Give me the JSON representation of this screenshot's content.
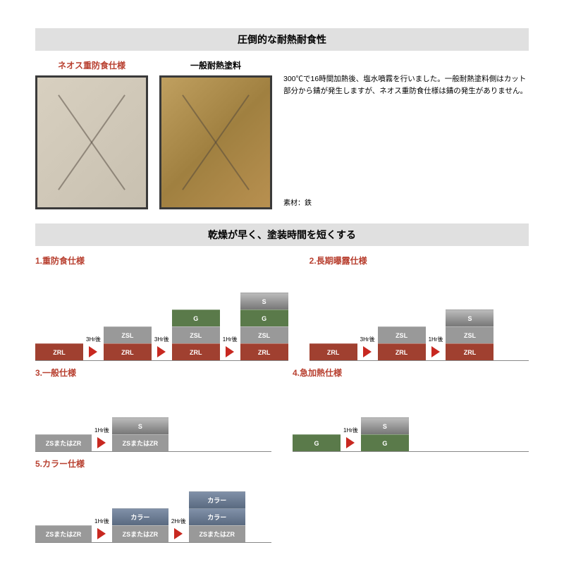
{
  "section1": {
    "title": "圧倒的な耐熱耐食性",
    "samples": [
      {
        "label": "ネオス重防食仕様",
        "labelColor": "red",
        "style": "clean"
      },
      {
        "label": "一般耐熱塗料",
        "labelColor": "black",
        "style": "rusty"
      }
    ],
    "description": "300℃で16時間加熱後、塩水噴霧を行いました。一般耐熱塗料側はカット部分から錆が発生しますが、ネオス重防食仕様は錆の発生がありません。",
    "material": "素材：鉄"
  },
  "section2": {
    "title": "乾燥が早く、塗装時間を短くする"
  },
  "specs": {
    "spec1": {
      "title": "1.重防食仕様",
      "steps": [
        {
          "layers": [
            "ZRL"
          ]
        },
        {
          "time": "3Hr後",
          "layers": [
            "ZRL",
            "ZSL"
          ]
        },
        {
          "time": "3Hr後",
          "layers": [
            "ZRL",
            "ZSL",
            "G"
          ]
        },
        {
          "time": "1Hr後",
          "layers": [
            "ZRL",
            "ZSL",
            "G",
            "S"
          ]
        }
      ]
    },
    "spec2": {
      "title": "2.長期曝露仕様",
      "steps": [
        {
          "layers": [
            "ZRL"
          ]
        },
        {
          "time": "3Hr後",
          "layers": [
            "ZRL",
            "ZSL"
          ]
        },
        {
          "time": "1Hr後",
          "layers": [
            "ZRL",
            "ZSL",
            "S"
          ]
        }
      ]
    },
    "spec3": {
      "title": "3.一般仕様",
      "steps": [
        {
          "layers": [
            "ZSまたはZR"
          ]
        },
        {
          "time": "1Hr後",
          "layers": [
            "ZSまたはZR",
            "S"
          ]
        }
      ]
    },
    "spec4": {
      "title": "4.急加熱仕様",
      "steps": [
        {
          "layers": [
            "G"
          ]
        },
        {
          "time": "1Hr後",
          "layers": [
            "G",
            "S"
          ]
        }
      ]
    },
    "spec5": {
      "title": "5.カラー仕様",
      "steps": [
        {
          "layers": [
            "ZSまたはZR"
          ]
        },
        {
          "time": "1Hr後",
          "layers": [
            "ZSまたはZR",
            "カラー"
          ]
        },
        {
          "time": "2Hr後",
          "layers": [
            "ZSまたはZR",
            "カラー",
            "カラー"
          ]
        }
      ]
    }
  },
  "layerStyles": {
    "ZRL": "lyr-zrl",
    "ZSL": "lyr-zsl",
    "G": "lyr-g",
    "S": "lyr-s",
    "ZSまたはZR": "lyr-zs",
    "カラー": "lyr-color"
  }
}
